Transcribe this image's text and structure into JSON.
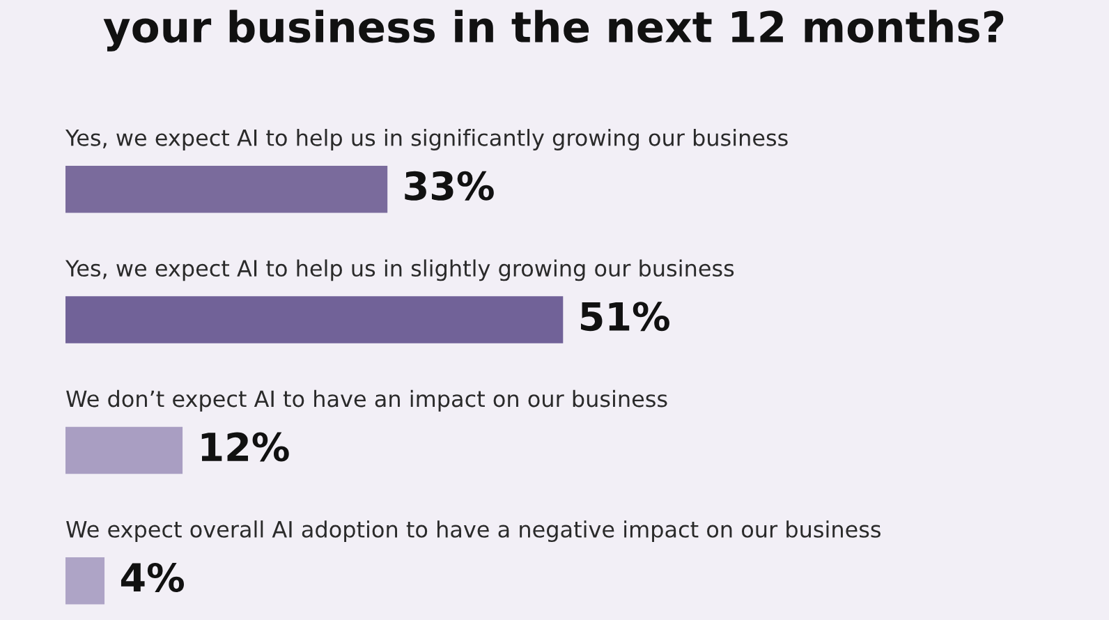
{
  "chart_data": {
    "type": "bar",
    "orientation": "horizontal",
    "title": "your business in the next 12 months?",
    "categories": [
      "Yes, we expect AI to help us in significantly growing our business",
      "Yes, we expect AI to help us in slightly growing our business",
      "We don’t expect AI to have an impact on our business",
      "We expect overall AI adoption to have a negative impact on our business"
    ],
    "values": [
      33,
      51,
      12,
      4
    ],
    "colors": [
      "#7a6b9c",
      "#716298",
      "#a99ec2",
      "#aea4c6"
    ],
    "value_labels": [
      "33%",
      "51%",
      "12%",
      "4%"
    ]
  }
}
